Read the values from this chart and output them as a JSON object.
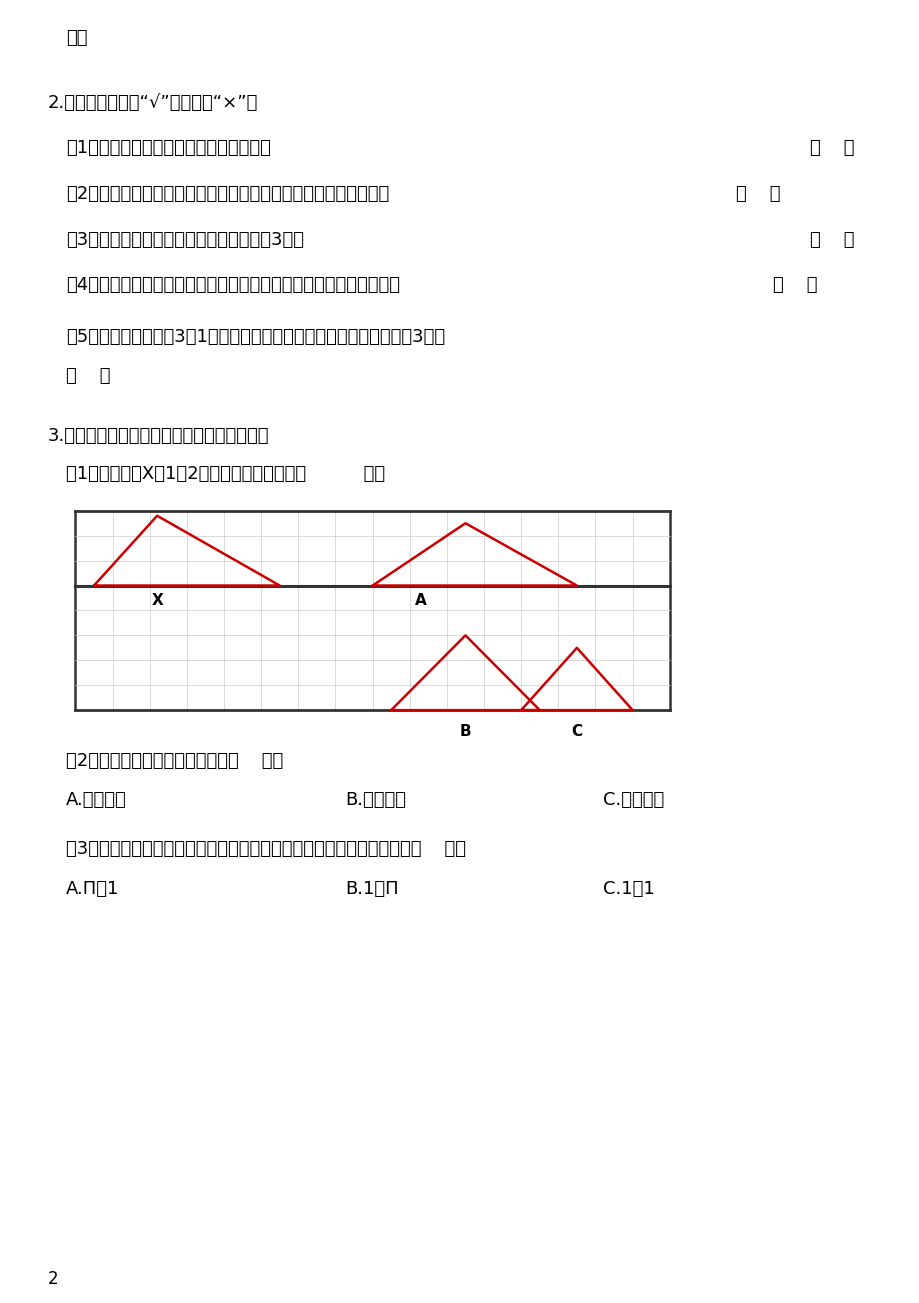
{
  "bg_color": "#ffffff",
  "text_color": "#000000",
  "red_color": "#cc0000",
  "grid_color": "#cccccc",
  "dark_line_color": "#333333",
  "line1": "例。",
  "section2_title": "2.辨一辨，对的画“√”，错的画“×”。",
  "q2_1_text": "（1）在数轴上，左边的数比右边的数大。",
  "q2_2_text": "（2）如果两个圆柱底面半径相等，那么它们的表面积也一定相等。",
  "q2_3_text": "（3）等底等高的圆柱的体积是圆锥体积的3倍。",
  "q2_4_text": "（4）在比例中，两个内项互为倒数，那么两个外项也一定互为倒数。",
  "q2_5_line1": "（5）把一个正方形扡3：1的比例放大后，周长和面积都扩大到原来的3倍。",
  "q2_5_line2": "（    ）",
  "bracket": "（    ）",
  "section3_title": "3.选一选，将正确答案前的字母填在括号里。",
  "q3_1": "（1）把三角形X扩1：2缩小后得到的图形是（          ）。",
  "q3_2": "（2）三角形的面积一定，底和高（    ）。",
  "q3_2_A": "A.成正比例",
  "q3_2_B": "B.成反比例",
  "q3_2_C": "C.不成比例",
  "q3_3": "（3）一个圆柱的侧面展开后是正方形，这个圆柱的高和底面直径的比是（    ）。",
  "q3_3_A": "A.Π：1",
  "q3_3_B": "B.1：Π",
  "q3_3_C": "C.1：1",
  "page_num": "2"
}
